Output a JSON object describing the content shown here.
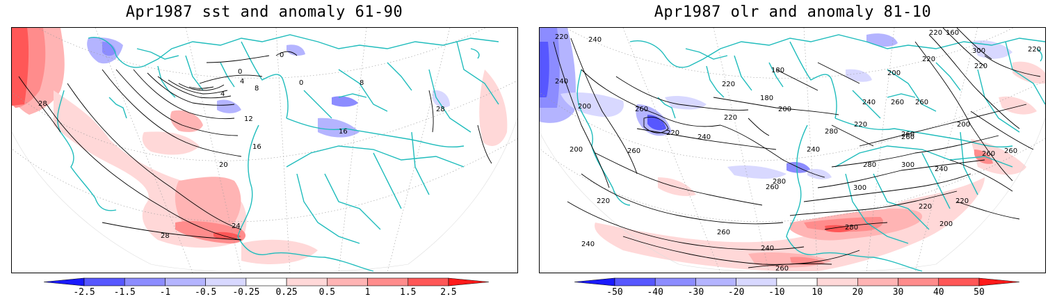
{
  "panels": [
    {
      "title": "Apr1987 sst and anomaly 61-90",
      "colorbar": {
        "labels": [
          "-2.5",
          "-1.5",
          "-1",
          "-0.5",
          "-0.25",
          "0.25",
          "0.5",
          "1",
          "1.5",
          "2.5"
        ],
        "colors": [
          "#1a1aff",
          "#5757ff",
          "#8c8cff",
          "#b4b4ff",
          "#d8d8ff",
          "#ffffff",
          "#ffd8d8",
          "#ffb4b4",
          "#ff8c8c",
          "#ff5757",
          "#ff1a1a"
        ]
      },
      "contour_labels": [
        "28",
        "0",
        "0",
        "4",
        "4",
        "8",
        "12",
        "16",
        "16",
        "8",
        "0",
        "20",
        "24",
        "28",
        "28"
      ]
    },
    {
      "title": "Apr1987 olr and anomaly 81-10",
      "colorbar": {
        "labels": [
          "-50",
          "-40",
          "-30",
          "-20",
          "-10",
          "10",
          "20",
          "30",
          "40",
          "50"
        ],
        "colors": [
          "#1a1aff",
          "#5757ff",
          "#8c8cff",
          "#b4b4ff",
          "#d8d8ff",
          "#ffffff",
          "#ffd8d8",
          "#ffb4b4",
          "#ff8c8c",
          "#ff5757",
          "#ff1a1a"
        ]
      },
      "contour_labels": [
        "220",
        "240",
        "220",
        "160",
        "180",
        "300",
        "240",
        "220",
        "200",
        "220",
        "260",
        "180",
        "220",
        "200",
        "260",
        "280",
        "200",
        "240",
        "260",
        "220",
        "200",
        "220",
        "240",
        "220",
        "260",
        "200",
        "220",
        "260",
        "280",
        "240",
        "260",
        "220",
        "300",
        "280",
        "300",
        "240",
        "260",
        "220",
        "260",
        "220",
        "280",
        "240",
        "200",
        "260",
        "260",
        "240",
        "260"
      ]
    }
  ]
}
